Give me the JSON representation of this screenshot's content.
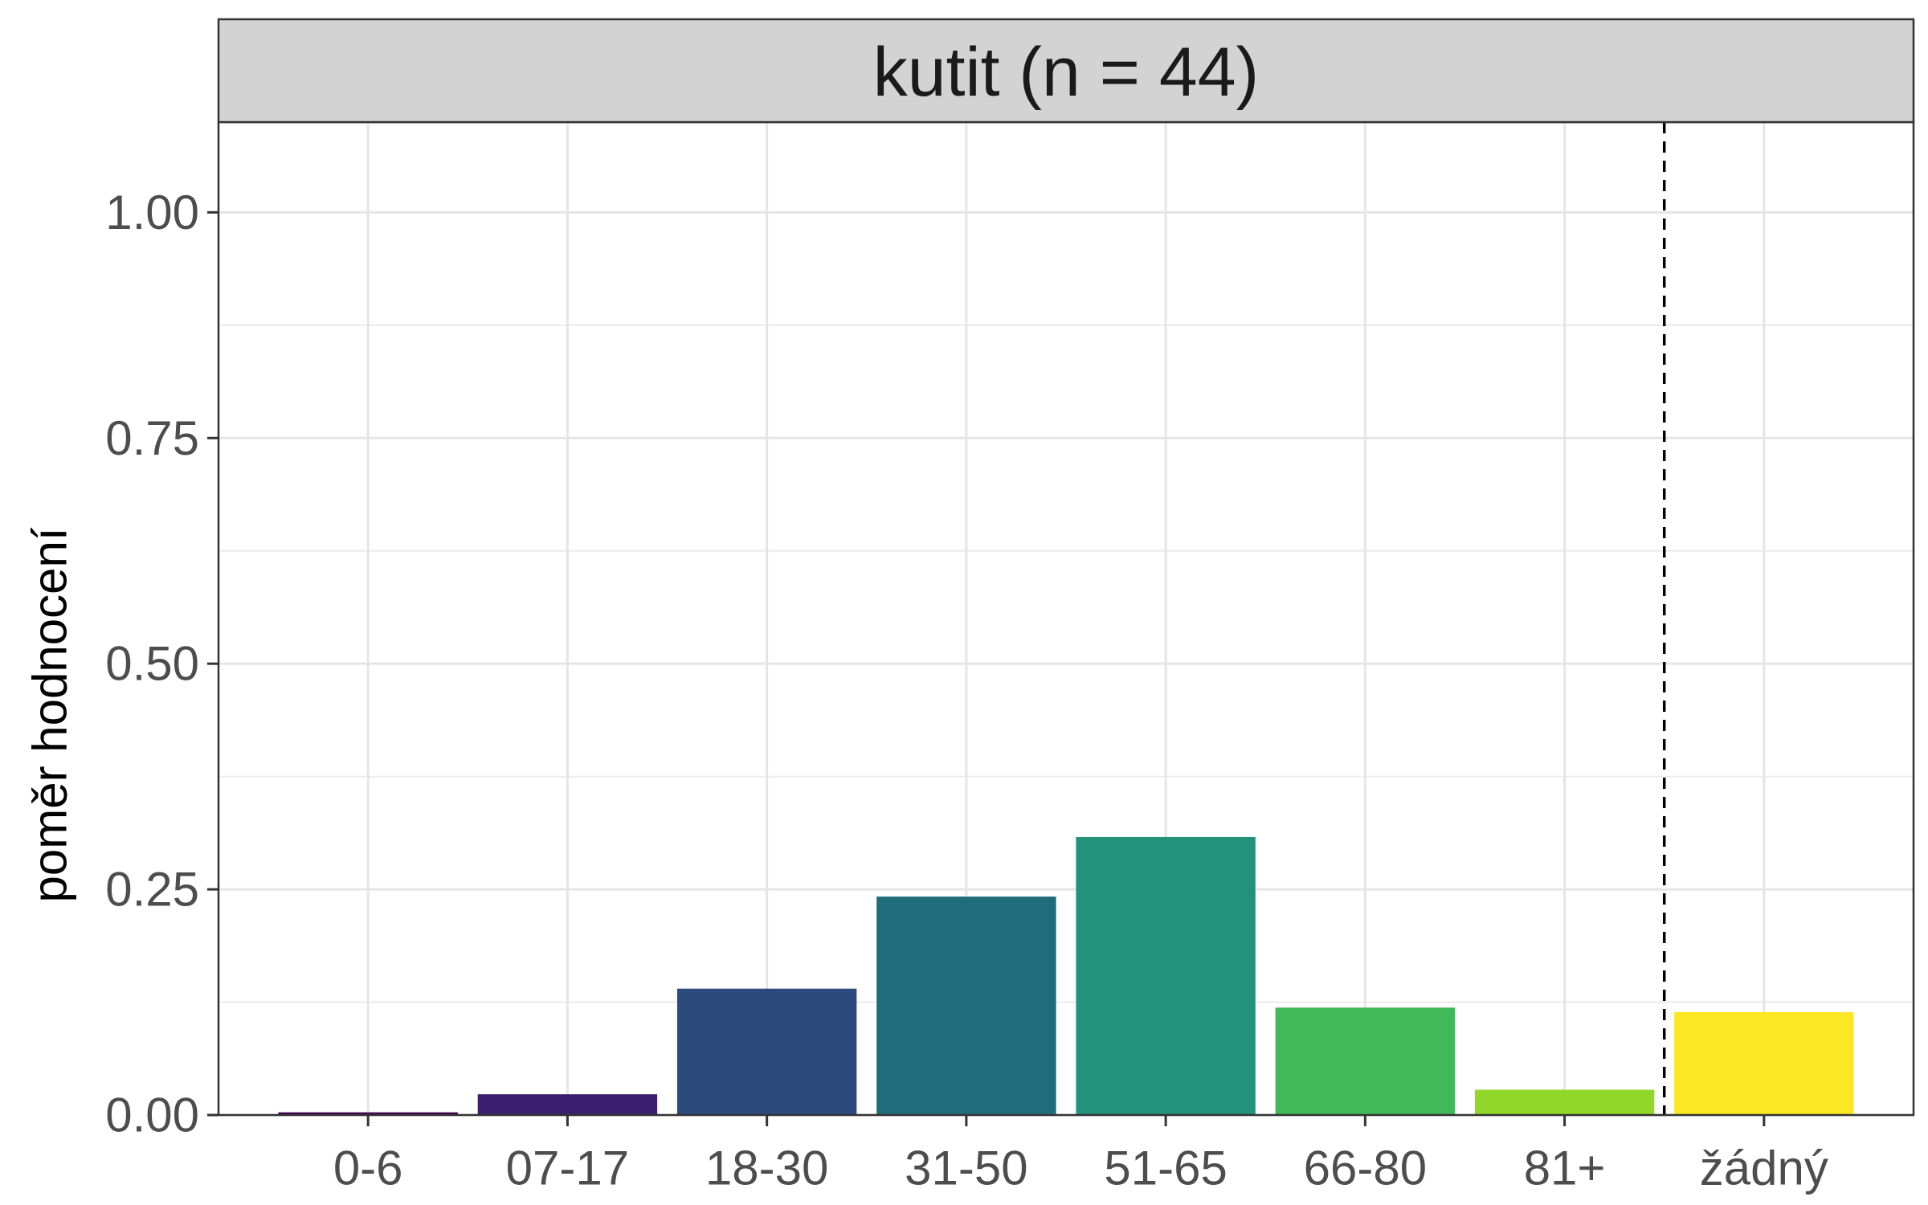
{
  "chart_data": {
    "type": "bar",
    "facet_title": "kutit (n = 44)",
    "ylabel": "poměr hodnocení",
    "xlabel": "",
    "ylim": [
      0,
      1.1
    ],
    "y_ticks": [
      "0.00",
      "0.25",
      "0.50",
      "0.75",
      "1.00"
    ],
    "categories": [
      "0-6",
      "07-17",
      "18-30",
      "31-50",
      "51-65",
      "66-80",
      "81+",
      "žádný"
    ],
    "values": [
      0.003,
      0.023,
      0.14,
      0.242,
      0.308,
      0.119,
      0.028,
      0.114
    ],
    "colors": [
      "#440154",
      "#3b1f6e",
      "#2c4a7c",
      "#1f6c7a",
      "#21937a",
      "#42b959",
      "#91d72a",
      "#fde725"
    ],
    "separator_after_category": "81+",
    "grid": true,
    "legend": "none"
  }
}
